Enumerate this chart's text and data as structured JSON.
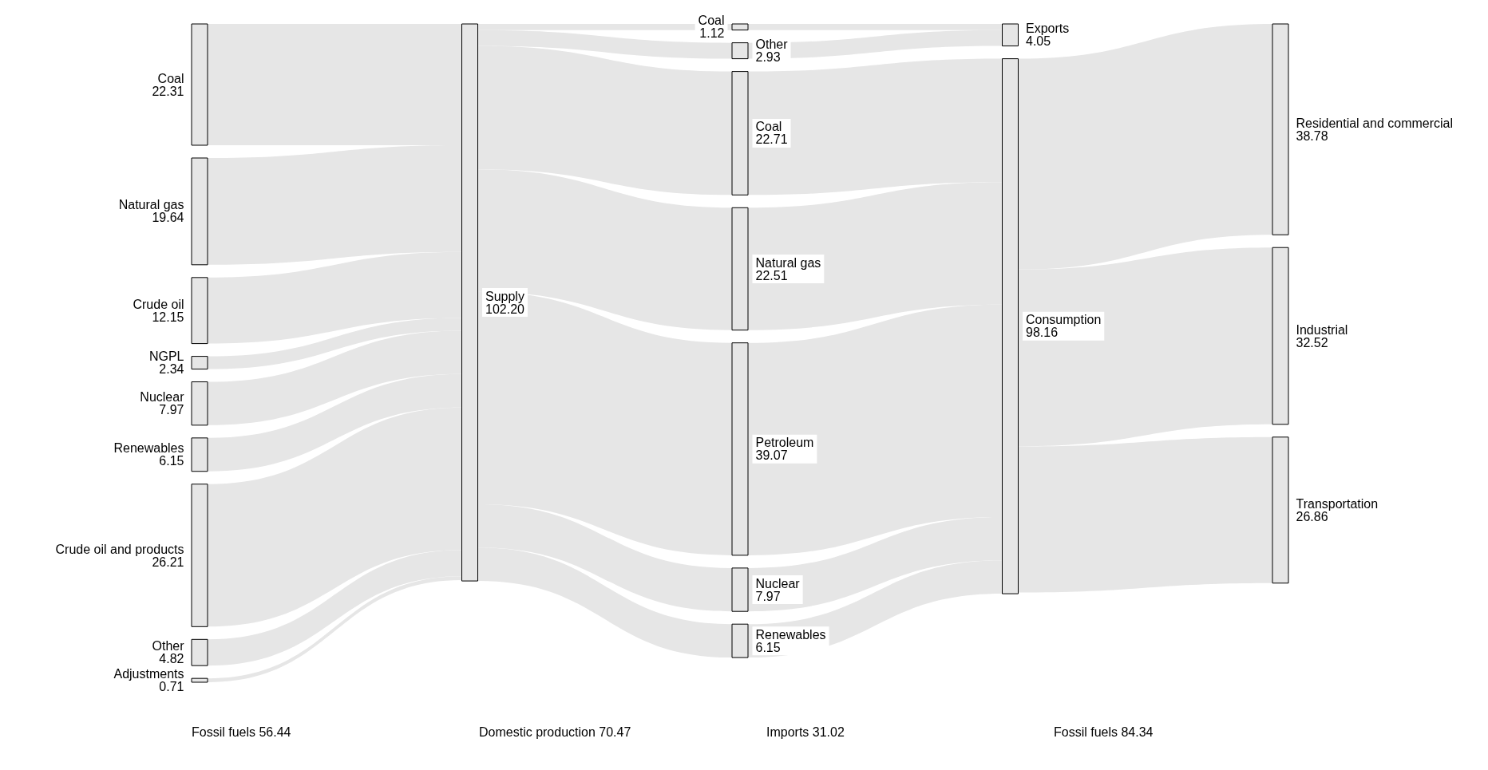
{
  "chart_data": {
    "type": "other",
    "categories": [
      "Coal",
      "Natural gas",
      "Crude oil",
      "NGPL",
      "Nuclear",
      "Renewables",
      "Crude oil and products",
      "Other",
      "Adjustments",
      "Supply",
      "Exports",
      "Coal",
      "Other",
      "Consumption",
      "Residential and commercial",
      "Industrial",
      "Transportation",
      "Coal",
      "Natural gas",
      "Petroleum",
      "Nuclear",
      "Renewables"
    ],
    "values": [
      22.31,
      19.64,
      12.15,
      2.34,
      7.97,
      6.15,
      26.21,
      4.82,
      0.71,
      102.2,
      4.05,
      1.12,
      2.93,
      98.16,
      38.78,
      32.52,
      26.86,
      22.71,
      22.51,
      39.07,
      7.97,
      6.15
    ],
    "value_labels": [
      "22.31",
      "19.64",
      "12.15",
      "2.34",
      "7.97",
      "6.15",
      "26.21",
      "4.82",
      "0.71",
      "102.20",
      "4.05",
      "1.12",
      "2.93",
      "98.16",
      "38.78",
      "32.52",
      "26.86",
      "22.71",
      "22.51",
      "39.07",
      "7.97",
      "6.15"
    ],
    "annotations": [
      "Fossil fuels 56.44",
      "Domestic production 70.47",
      "Imports 31.02",
      "Fossil fuels 84.34"
    ]
  }
}
